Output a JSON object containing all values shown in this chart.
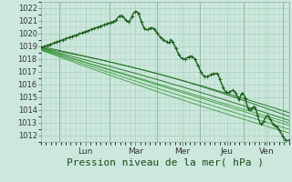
{
  "bg_color": "#cce8dd",
  "grid_color": "#aaccbb",
  "line_color_dark": "#1a5c1a",
  "line_color_mid": "#2a7a2a",
  "line_color_light": "#3a9a3a",
  "ylabel_text": "Pression niveau de la mer( hPa )",
  "ylim": [
    1011.5,
    1022.5
  ],
  "yticks": [
    1012,
    1013,
    1014,
    1015,
    1016,
    1017,
    1018,
    1019,
    1020,
    1021,
    1022
  ],
  "xtick_labels": [
    "Lun",
    "Mar",
    "Mer",
    "Jeu",
    "Ven"
  ],
  "xtick_pos": [
    0.9,
    1.9,
    2.85,
    3.75,
    4.55
  ],
  "xlim": [
    0,
    5.0
  ],
  "xlabel_fontsize": 8,
  "tick_fontsize": 6
}
